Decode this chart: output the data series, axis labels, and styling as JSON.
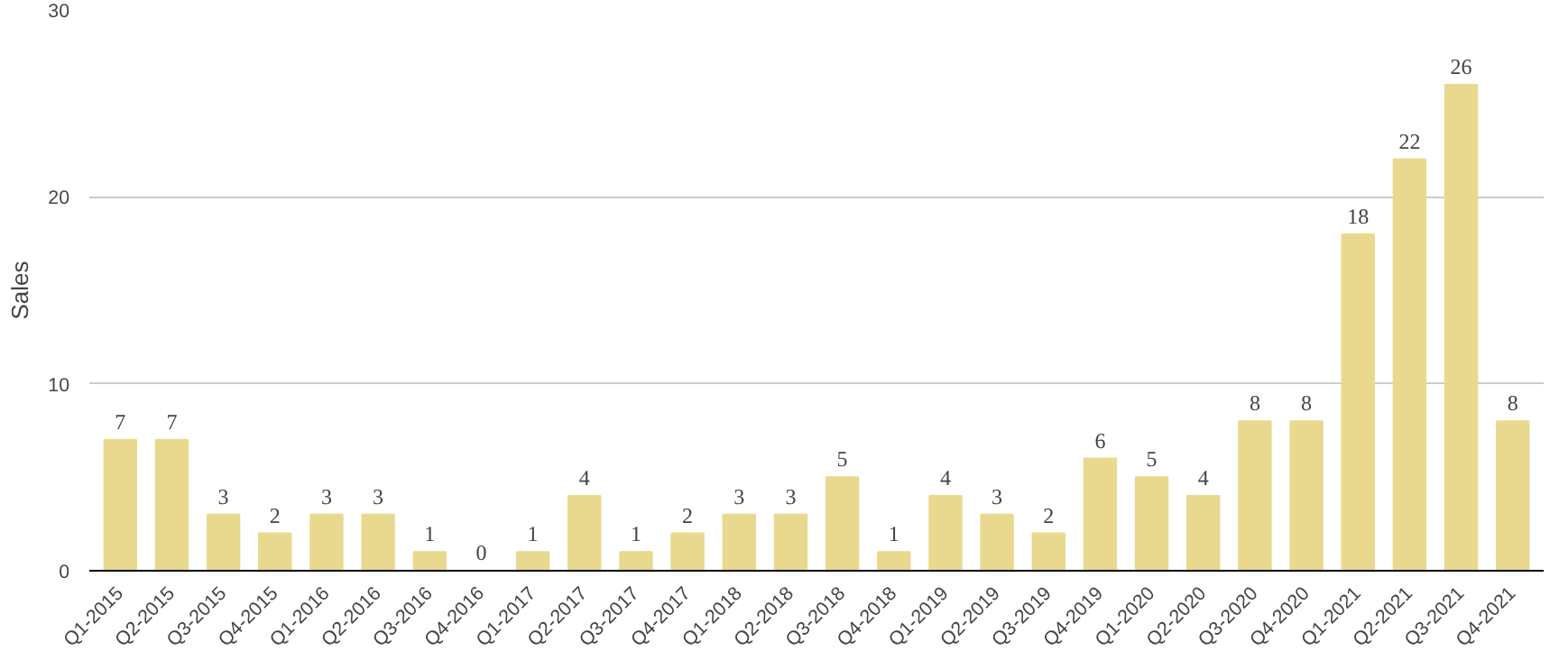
{
  "chart_data": {
    "type": "bar",
    "ylabel": "Sales",
    "categories": [
      "Q1-2015",
      "Q2-2015",
      "Q3-2015",
      "Q4-2015",
      "Q1-2016",
      "Q2-2016",
      "Q3-2016",
      "Q4-2016",
      "Q1-2017",
      "Q2-2017",
      "Q3-2017",
      "Q4-2017",
      "Q1-2018",
      "Q2-2018",
      "Q3-2018",
      "Q4-2018",
      "Q1-2019",
      "Q2-2019",
      "Q3-2019",
      "Q4-2019",
      "Q1-2020",
      "Q2-2020",
      "Q3-2020",
      "Q4-2020",
      "Q1-2021",
      "Q2-2021",
      "Q3-2021",
      "Q4-2021"
    ],
    "values": [
      7,
      7,
      3,
      2,
      3,
      3,
      1,
      0,
      1,
      4,
      1,
      2,
      3,
      3,
      5,
      1,
      4,
      3,
      2,
      6,
      5,
      4,
      8,
      8,
      18,
      22,
      26,
      8
    ],
    "color": "#e8d98f",
    "ylim": [
      0,
      30
    ],
    "yticks": [
      0,
      10,
      20,
      30
    ],
    "grid": "y",
    "data_labels": true
  }
}
